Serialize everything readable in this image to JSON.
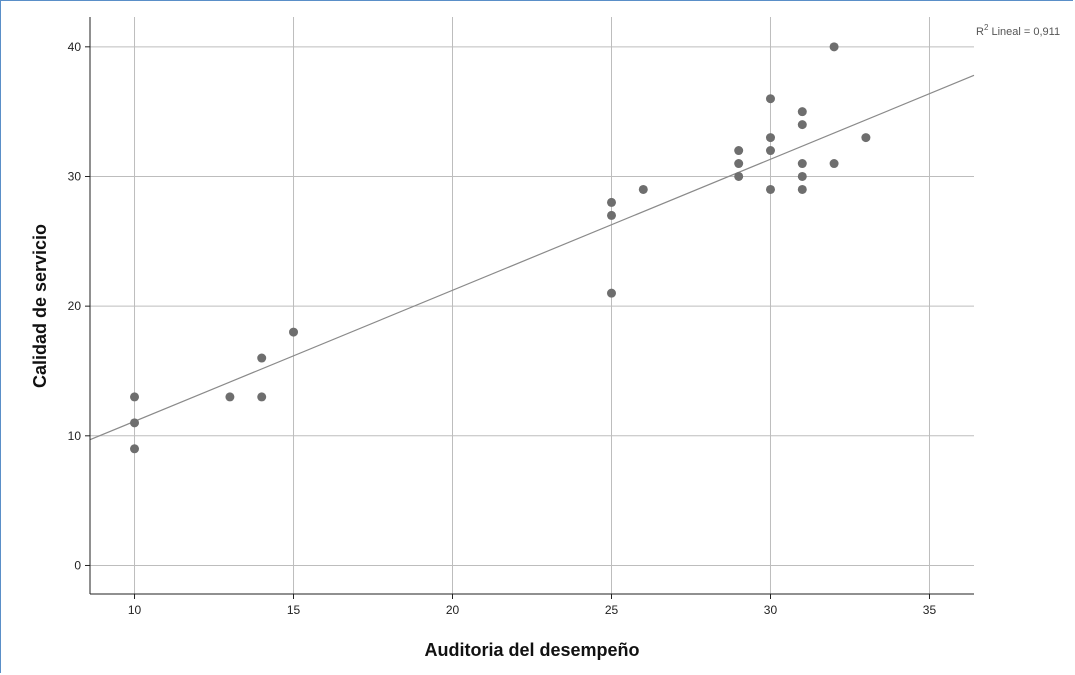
{
  "chart_data": {
    "type": "scatter",
    "title": "",
    "xlabel": "Auditoria del desempeño",
    "ylabel": "Calidad de servicio",
    "xlim": [
      8.6,
      36.4
    ],
    "ylim": [
      -2.2,
      42.3
    ],
    "xticks": [
      10,
      15,
      20,
      25,
      30,
      35
    ],
    "yticks": [
      0,
      10,
      20,
      30,
      40
    ],
    "xtick_labels": [
      "10",
      "15",
      "20",
      "25",
      "30",
      "35"
    ],
    "ytick_labels": [
      "0",
      "10",
      "20",
      "30",
      "40"
    ],
    "grid": true,
    "points": [
      {
        "x": 10,
        "y": 13
      },
      {
        "x": 10,
        "y": 11
      },
      {
        "x": 10,
        "y": 9
      },
      {
        "x": 13,
        "y": 13
      },
      {
        "x": 14,
        "y": 16
      },
      {
        "x": 14,
        "y": 13
      },
      {
        "x": 15,
        "y": 18
      },
      {
        "x": 25,
        "y": 28
      },
      {
        "x": 25,
        "y": 27
      },
      {
        "x": 25,
        "y": 21
      },
      {
        "x": 26,
        "y": 29
      },
      {
        "x": 29,
        "y": 32
      },
      {
        "x": 29,
        "y": 31
      },
      {
        "x": 29,
        "y": 30
      },
      {
        "x": 30,
        "y": 36
      },
      {
        "x": 30,
        "y": 33
      },
      {
        "x": 30,
        "y": 32
      },
      {
        "x": 30,
        "y": 29
      },
      {
        "x": 31,
        "y": 35
      },
      {
        "x": 31,
        "y": 34
      },
      {
        "x": 31,
        "y": 31
      },
      {
        "x": 31,
        "y": 30
      },
      {
        "x": 31,
        "y": 29
      },
      {
        "x": 32,
        "y": 40
      },
      {
        "x": 32,
        "y": 31
      },
      {
        "x": 33,
        "y": 33
      }
    ],
    "fit_line": {
      "type": "linear",
      "x": [
        8.6,
        36.4
      ],
      "y": [
        9.7,
        37.8
      ]
    },
    "annotation": {
      "base": "R",
      "superscript": "2",
      "text": " Lineal = 0,911"
    },
    "colors": {
      "points": "#6e6e6e",
      "grid": "#bdbdbd",
      "fit": "#8a8a8a",
      "axis": "#222222"
    }
  }
}
